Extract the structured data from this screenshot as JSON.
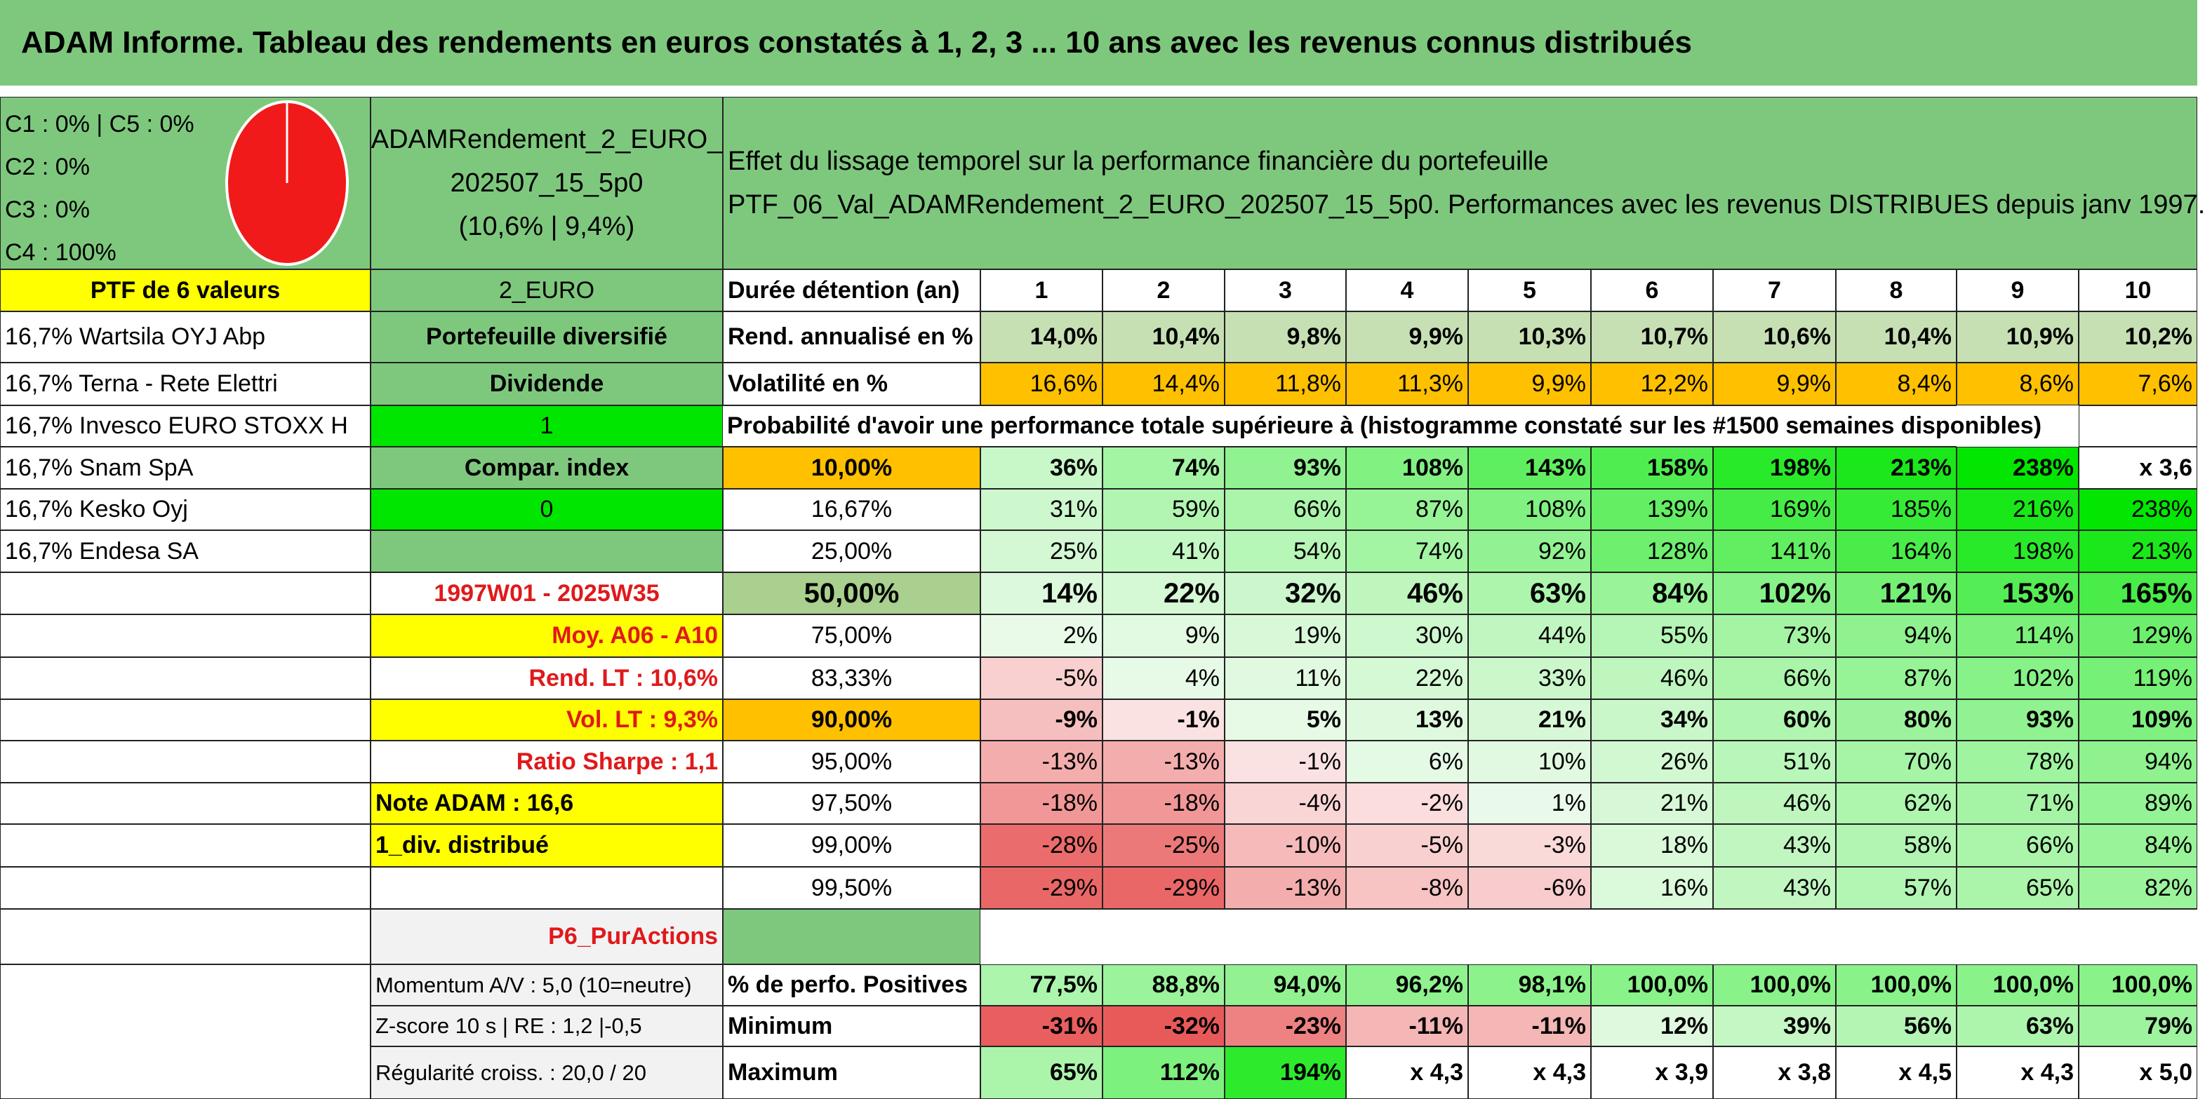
{
  "title": "ADAM Informe. Tableau des rendements en euros constatés à 1, 2, 3 ... 10 ans avec les revenus connus distribués",
  "classes": [
    "C1 : 0% | C5 : 0%",
    "C2 : 0%",
    "C3 : 0%",
    "C4 : 100%"
  ],
  "fund": {
    "line1": "ADAMRendement_2_EURO_",
    "line2": "202507_15_5p0",
    "line3": "(10,6% | 9,4%)"
  },
  "effect": {
    "line1": "Effet du lissage temporel sur la performance financière du portefeuille",
    "line2": "PTF_06_Val_ADAMRendement_2_EURO_202507_15_5p0. Performances avec les revenus DISTRIBUES depuis janv 1997."
  },
  "ptf_header": "PTF de 6 valeurs",
  "holdings": [
    "16,7% Wartsila OYJ Abp",
    "16,7% Terna - Rete Elettri",
    "16,7% Invesco EURO STOXX H",
    "16,7% Snam SpA",
    "16,7% Kesko Oyj",
    "16,7% Endesa SA"
  ],
  "labels": {
    "code": "2_EURO",
    "type": "Portefeuille diversifié",
    "dividende": "Dividende",
    "dividende_val": "1",
    "compar": "Compar. index",
    "compar_val": "0",
    "period": "1997W01 - 2025W35",
    "moy": "Moy. A06 - A10",
    "rend_lt": "Rend. LT : 10,6%",
    "vol_lt": "Vol. LT : 9,3%",
    "sharpe": "Ratio Sharpe : 1,1",
    "note": "Note ADAM : 16,6",
    "div": "1_div. distribué",
    "pur": "P6_PurActions",
    "momentum": "Momentum A/V : 5,0 (10=neutre)",
    "zscore": "Z-score 10 s | RE : 1,2 |-0,5",
    "regularite": "Régularité croiss. : 20,0 / 20"
  },
  "table": {
    "duree_label": "Durée détention (an)",
    "years": [
      "1",
      "2",
      "3",
      "4",
      "5",
      "6",
      "7",
      "8",
      "9",
      "10"
    ],
    "rend_label": "Rend. annualisé en %",
    "rend": [
      "14,0%",
      "10,4%",
      "9,8%",
      "9,9%",
      "10,3%",
      "10,7%",
      "10,6%",
      "10,4%",
      "10,9%",
      "10,2%"
    ],
    "vol_label": "Volatilité en %",
    "vol": [
      "16,6%",
      "14,4%",
      "11,8%",
      "11,3%",
      "9,9%",
      "12,2%",
      "9,9%",
      "8,4%",
      "8,6%",
      "7,6%"
    ],
    "prob_label": "Probabilité d'avoir une performance totale supérieure à (histogramme constaté sur les #1500 semaines disponibles)",
    "prob_rows": [
      {
        "p": "10,00%",
        "v": [
          "36%",
          "74%",
          "93%",
          "108%",
          "143%",
          "158%",
          "198%",
          "213%",
          "238%",
          "x 3,6"
        ]
      },
      {
        "p": "16,67%",
        "v": [
          "31%",
          "59%",
          "66%",
          "87%",
          "108%",
          "139%",
          "169%",
          "185%",
          "216%",
          "238%"
        ]
      },
      {
        "p": "25,00%",
        "v": [
          "25%",
          "41%",
          "54%",
          "74%",
          "92%",
          "128%",
          "141%",
          "164%",
          "198%",
          "213%"
        ]
      },
      {
        "p": "50,00%",
        "v": [
          "14%",
          "22%",
          "32%",
          "46%",
          "63%",
          "84%",
          "102%",
          "121%",
          "153%",
          "165%"
        ]
      },
      {
        "p": "75,00%",
        "v": [
          "2%",
          "9%",
          "19%",
          "30%",
          "44%",
          "55%",
          "73%",
          "94%",
          "114%",
          "129%"
        ]
      },
      {
        "p": "83,33%",
        "v": [
          "-5%",
          "4%",
          "11%",
          "22%",
          "33%",
          "46%",
          "66%",
          "87%",
          "102%",
          "119%"
        ]
      },
      {
        "p": "90,00%",
        "v": [
          "-9%",
          "-1%",
          "5%",
          "13%",
          "21%",
          "34%",
          "60%",
          "80%",
          "93%",
          "109%"
        ]
      },
      {
        "p": "95,00%",
        "v": [
          "-13%",
          "-13%",
          "-1%",
          "6%",
          "10%",
          "26%",
          "51%",
          "70%",
          "78%",
          "94%"
        ]
      },
      {
        "p": "97,50%",
        "v": [
          "-18%",
          "-18%",
          "-4%",
          "-2%",
          "1%",
          "21%",
          "46%",
          "62%",
          "71%",
          "89%"
        ]
      },
      {
        "p": "99,00%",
        "v": [
          "-28%",
          "-25%",
          "-10%",
          "-5%",
          "-3%",
          "18%",
          "43%",
          "58%",
          "66%",
          "84%"
        ]
      },
      {
        "p": "99,50%",
        "v": [
          "-29%",
          "-29%",
          "-13%",
          "-8%",
          "-6%",
          "16%",
          "43%",
          "57%",
          "65%",
          "82%"
        ]
      }
    ],
    "pos_label": "% de perfo. Positives",
    "pos": [
      "77,5%",
      "88,8%",
      "94,0%",
      "96,2%",
      "98,1%",
      "100,0%",
      "100,0%",
      "100,0%",
      "100,0%",
      "100,0%"
    ],
    "min_label": "Minimum",
    "min": [
      "-31%",
      "-32%",
      "-23%",
      "-11%",
      "-11%",
      "12%",
      "39%",
      "56%",
      "63%",
      "79%"
    ],
    "max_label": "Maximum",
    "max": [
      "65%",
      "112%",
      "194%",
      "x 4,3",
      "x 4,3",
      "x 3,9",
      "x 3,8",
      "x 4,5",
      "x 4,3",
      "x 5,0"
    ]
  }
}
